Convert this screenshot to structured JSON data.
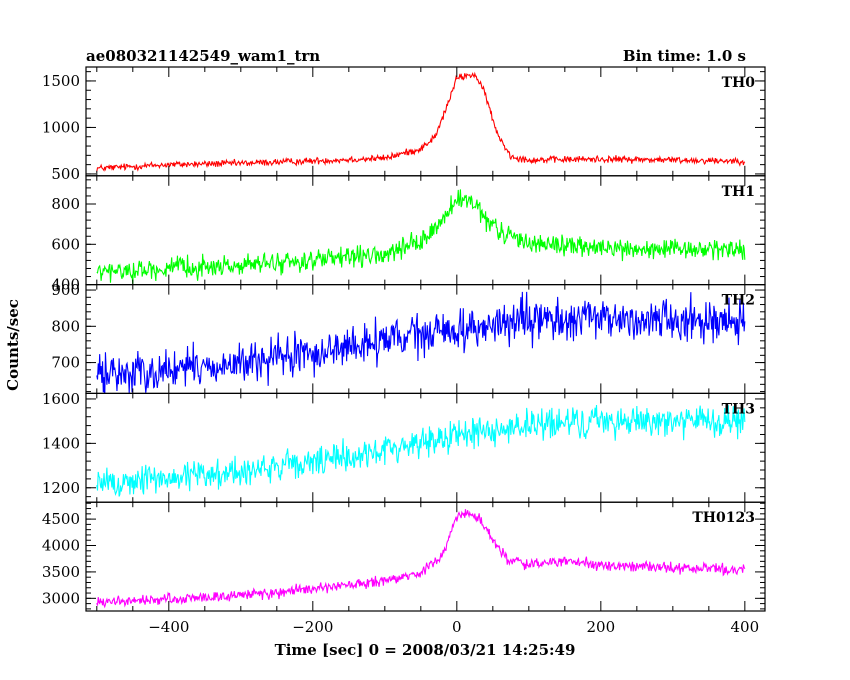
{
  "chart_data": {
    "type": "line",
    "title": "ae080321142549_wam1_trn",
    "bin_time_label": "Bin time: 1.0 s",
    "xlabel": "Time [sec] 0 = 2008/03/21 14:25:49",
    "ylabel": "Counts/sec",
    "xlim": [
      -515,
      428
    ],
    "x_ticks": [
      -400,
      -200,
      0,
      200,
      400
    ],
    "grid": false,
    "series": [
      {
        "name": "TH0",
        "color": "#ff0000",
        "ylim": [
          480,
          1650
        ],
        "y_ticks": [
          500,
          1000,
          1500
        ],
        "noise": 18,
        "profile": [
          [
            -500,
            560
          ],
          [
            -400,
            600
          ],
          [
            -300,
            615
          ],
          [
            -200,
            640
          ],
          [
            -100,
            670
          ],
          [
            -50,
            770
          ],
          [
            -30,
            900
          ],
          [
            -15,
            1200
          ],
          [
            0,
            1530
          ],
          [
            10,
            1550
          ],
          [
            25,
            1570
          ],
          [
            40,
            1350
          ],
          [
            55,
            950
          ],
          [
            75,
            690
          ],
          [
            100,
            650
          ],
          [
            200,
            660
          ],
          [
            300,
            650
          ],
          [
            400,
            640
          ]
        ]
      },
      {
        "name": "TH1",
        "color": "#00ff00",
        "ylim": [
          400,
          940
        ],
        "y_ticks": [
          400,
          600,
          800
        ],
        "noise": 25,
        "profile": [
          [
            -500,
            460
          ],
          [
            -400,
            480
          ],
          [
            -300,
            495
          ],
          [
            -200,
            520
          ],
          [
            -100,
            545
          ],
          [
            -50,
            610
          ],
          [
            -20,
            720
          ],
          [
            0,
            820
          ],
          [
            20,
            810
          ],
          [
            40,
            720
          ],
          [
            60,
            660
          ],
          [
            100,
            610
          ],
          [
            200,
            580
          ],
          [
            300,
            570
          ],
          [
            400,
            580
          ]
        ]
      },
      {
        "name": "TH2",
        "color": "#0000ff",
        "ylim": [
          615,
          915
        ],
        "y_ticks": [
          700,
          800,
          900
        ],
        "noise": 28,
        "profile": [
          [
            -500,
            665
          ],
          [
            -400,
            680
          ],
          [
            -300,
            695
          ],
          [
            -200,
            725
          ],
          [
            -100,
            760
          ],
          [
            0,
            790
          ],
          [
            100,
            815
          ],
          [
            200,
            820
          ],
          [
            300,
            820
          ],
          [
            400,
            815
          ]
        ]
      },
      {
        "name": "TH3",
        "color": "#00ffff",
        "ylim": [
          1135,
          1625
        ],
        "y_ticks": [
          1200,
          1400,
          1600
        ],
        "noise": 35,
        "profile": [
          [
            -500,
            1215
          ],
          [
            -400,
            1245
          ],
          [
            -300,
            1275
          ],
          [
            -200,
            1310
          ],
          [
            -100,
            1370
          ],
          [
            0,
            1440
          ],
          [
            100,
            1480
          ],
          [
            200,
            1500
          ],
          [
            300,
            1505
          ],
          [
            400,
            1490
          ]
        ]
      },
      {
        "name": "TH0123",
        "color": "#ff00ff",
        "ylim": [
          2760,
          4820
        ],
        "y_ticks": [
          3000,
          3500,
          4000,
          4500
        ],
        "noise": 50,
        "profile": [
          [
            -500,
            2920
          ],
          [
            -400,
            2980
          ],
          [
            -300,
            3060
          ],
          [
            -200,
            3170
          ],
          [
            -100,
            3320
          ],
          [
            -50,
            3480
          ],
          [
            -20,
            3800
          ],
          [
            0,
            4550
          ],
          [
            15,
            4600
          ],
          [
            30,
            4560
          ],
          [
            50,
            4100
          ],
          [
            70,
            3750
          ],
          [
            100,
            3640
          ],
          [
            150,
            3700
          ],
          [
            200,
            3620
          ],
          [
            300,
            3580
          ],
          [
            400,
            3540
          ]
        ]
      }
    ]
  }
}
